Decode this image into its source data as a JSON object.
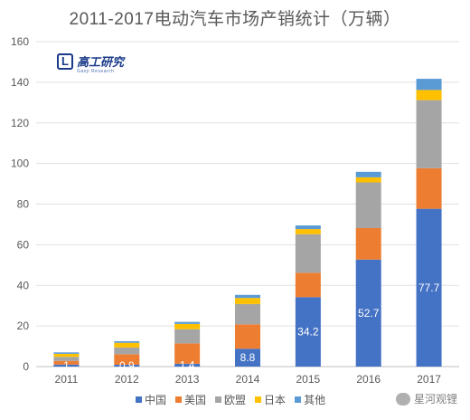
{
  "chart_data": {
    "type": "bar",
    "stacked": true,
    "title": "2011-2017电动汽车市场产销统计（万辆）",
    "categories": [
      "2011",
      "2012",
      "2013",
      "2014",
      "2015",
      "2016",
      "2017"
    ],
    "ylim": [
      0,
      160
    ],
    "yticks": [
      0,
      20,
      40,
      60,
      80,
      100,
      120,
      140,
      160
    ],
    "grid": true,
    "legend_position": "bottom",
    "series": [
      {
        "name": "中国",
        "color": "#4472C4",
        "values": [
          1,
          0.9,
          1.4,
          8.8,
          34.2,
          52.7,
          77.7
        ]
      },
      {
        "name": "美国",
        "color": "#ED7D31",
        "values": [
          1.8,
          5.2,
          10.0,
          12.0,
          12.0,
          15.5,
          20.0
        ]
      },
      {
        "name": "欧盟",
        "color": "#A5A5A5",
        "values": [
          2.0,
          3.3,
          7.0,
          10.0,
          19.0,
          22.5,
          33.5
        ]
      },
      {
        "name": "日本",
        "color": "#FFC000",
        "values": [
          1.5,
          2.3,
          2.6,
          3.0,
          2.5,
          2.5,
          5.0
        ]
      },
      {
        "name": "其他",
        "color": "#5B9BD5",
        "values": [
          0.7,
          0.8,
          1.0,
          1.5,
          1.8,
          2.7,
          5.5
        ]
      }
    ],
    "data_labels": {
      "中国": [
        "1",
        "0.9",
        "1.4",
        "8.8",
        "34.2",
        "52.7",
        "77.7"
      ]
    }
  },
  "logo": {
    "mark": "L",
    "text": "高工研究",
    "sub": "Gaoji Research"
  },
  "watermark": {
    "text": "星河观锂"
  }
}
